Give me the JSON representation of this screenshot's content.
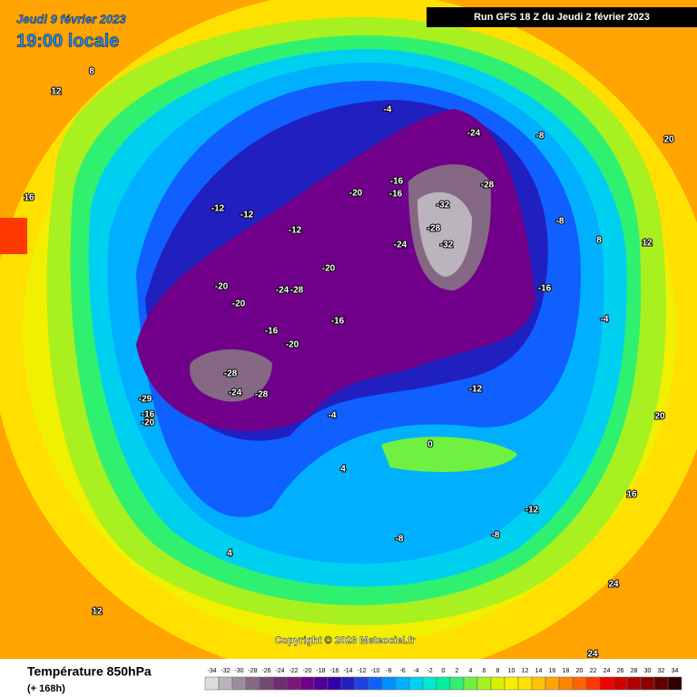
{
  "header": {
    "date": "Jeudi 9 février 2023",
    "time": "19:00 locale",
    "run": "Run GFS 18 Z du Jeudi 2 février 2023"
  },
  "copyright": "Copyright © 2023 Meteociel.fr",
  "footer": {
    "title": "Température 850hPa",
    "lead": "(+ 168h)"
  },
  "legend": {
    "ticks": [
      -34,
      -32,
      -30,
      -28,
      -26,
      -24,
      -22,
      -20,
      -18,
      -16,
      -14,
      -12,
      -10,
      -8,
      -6,
      -4,
      -2,
      0,
      2,
      4,
      6,
      8,
      10,
      12,
      14,
      16,
      18,
      20,
      22,
      24,
      26,
      28,
      30,
      32,
      34
    ],
    "colors": [
      "#dcdcdc",
      "#bcb4bc",
      "#9c8c9c",
      "#846884",
      "#744a74",
      "#702c70",
      "#7a167a",
      "#70008a",
      "#4c0098",
      "#3200a8",
      "#2020c0",
      "#2040e0",
      "#1060ff",
      "#0090ff",
      "#00b0ff",
      "#00d0f0",
      "#00e8d0",
      "#00f0a0",
      "#30f070",
      "#70f040",
      "#a8f020",
      "#d8f000",
      "#f4f000",
      "#ffe000",
      "#ffc400",
      "#ffa400",
      "#ff8400",
      "#ff6400",
      "#ff3800",
      "#f00000",
      "#d00000",
      "#b00000",
      "#900000",
      "#600000",
      "#300000"
    ]
  },
  "map": {
    "labels": [
      -24,
      -28,
      -32,
      -32,
      -28,
      -24,
      -20,
      -16,
      -16,
      -20,
      -20,
      -24,
      -28,
      -20,
      -16,
      -16,
      -20,
      -28,
      -24,
      -28,
      -29,
      -16,
      -20,
      -12,
      -12,
      -12,
      -16,
      -12,
      -8,
      -8,
      -4,
      -4,
      -8,
      -12,
      -8,
      -4,
      0,
      4,
      4,
      8,
      12,
      12,
      16,
      20,
      20,
      24,
      24,
      16,
      12,
      8
    ]
  }
}
